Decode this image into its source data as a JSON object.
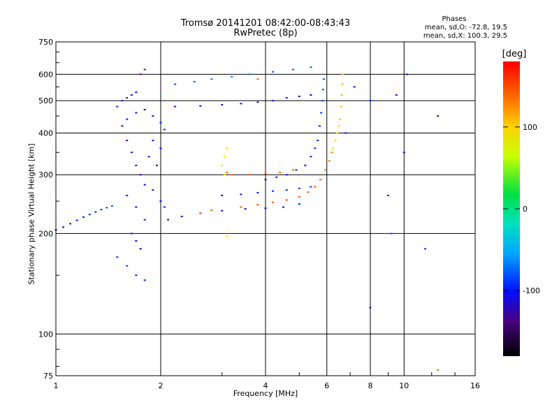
{
  "title": "Tromsø 20141201 08:42:00-08:43:43",
  "subtitle": "RwPretec (8p)",
  "stats": {
    "heading": "Phases",
    "line_o": "mean, sd,O: -72.8, 19.5",
    "line_x": "mean, sd,X: 100.3, 29.5"
  },
  "colorbar": {
    "unit": "[deg]",
    "ticks": [
      {
        "value": 100,
        "label": "100"
      },
      {
        "value": 0,
        "label": "0"
      },
      {
        "value": -100,
        "label": "-100"
      }
    ],
    "range": [
      -180,
      180
    ]
  },
  "chart_data": {
    "type": "scatter",
    "title": "Tromsø 20141201 08:42:00-08:43:43",
    "subtitle": "RwPretec (8p)",
    "xlabel": "Frequency [MHz]",
    "ylabel": "Stationary phase Virtual Height [km]",
    "x_scale": "log",
    "y_scale": "log",
    "xlim": [
      1,
      16
    ],
    "ylim": [
      75,
      750
    ],
    "x_ticks": [
      {
        "value": 1,
        "label": "1"
      },
      {
        "value": 2,
        "label": "2"
      },
      {
        "value": 4,
        "label": "4"
      },
      {
        "value": 6,
        "label": "6"
      },
      {
        "value": 8,
        "label": "8"
      },
      {
        "value": 10,
        "label": "10"
      },
      {
        "value": 16,
        "label": "16"
      }
    ],
    "y_ticks": [
      {
        "value": 75,
        "label": "75"
      },
      {
        "value": 100,
        "label": "100"
      },
      {
        "value": 200,
        "label": "200"
      },
      {
        "value": 300,
        "label": "300"
      },
      {
        "value": 400,
        "label": "400"
      },
      {
        "value": 500,
        "label": "500"
      },
      {
        "value": 600,
        "label": "600"
      },
      {
        "value": 750,
        "label": "750"
      }
    ],
    "grid": true,
    "color_encoding": "phase [deg]",
    "series": [
      {
        "points": [
          [
            1.0,
            205,
            -100
          ],
          [
            1.05,
            209,
            -98
          ],
          [
            1.1,
            214,
            -96
          ],
          [
            1.15,
            219,
            -94
          ],
          [
            1.2,
            224,
            -92
          ],
          [
            1.25,
            228,
            -90
          ],
          [
            1.3,
            232,
            -88
          ],
          [
            1.35,
            236,
            -86
          ],
          [
            1.4,
            239,
            -84
          ],
          [
            1.45,
            242,
            -82
          ]
        ]
      },
      {
        "points": [
          [
            1.5,
            480,
            -115
          ],
          [
            1.55,
            500,
            -112
          ],
          [
            1.6,
            510,
            -110
          ],
          [
            1.65,
            520,
            -108
          ],
          [
            1.7,
            530,
            -105
          ],
          [
            1.75,
            600,
            -120
          ],
          [
            1.8,
            620,
            -118
          ],
          [
            1.6,
            380,
            -110
          ],
          [
            1.65,
            350,
            -105
          ],
          [
            1.7,
            320,
            -112
          ],
          [
            1.75,
            300,
            -115
          ],
          [
            1.6,
            260,
            -108
          ],
          [
            1.7,
            240,
            -110
          ],
          [
            1.8,
            220,
            -115
          ],
          [
            1.65,
            200,
            -112
          ],
          [
            1.7,
            190,
            -110
          ],
          [
            1.75,
            180,
            -105
          ],
          [
            1.55,
            420,
            -100
          ],
          [
            1.6,
            440,
            -95
          ],
          [
            1.7,
            460,
            -100
          ],
          [
            1.8,
            470,
            -102
          ],
          [
            1.9,
            450,
            -98
          ],
          [
            2.0,
            430,
            -95
          ],
          [
            2.05,
            410,
            -92
          ],
          [
            1.9,
            380,
            -100
          ],
          [
            2.0,
            360,
            -102
          ],
          [
            1.85,
            340,
            -108
          ],
          [
            1.95,
            320,
            -105
          ],
          [
            1.8,
            280,
            -100
          ],
          [
            1.9,
            270,
            -98
          ],
          [
            2.0,
            250,
            -95
          ],
          [
            2.05,
            240,
            -92
          ],
          [
            1.5,
            170,
            -88
          ],
          [
            1.6,
            160,
            -90
          ],
          [
            1.7,
            150,
            -92
          ],
          [
            1.8,
            145,
            -95
          ]
        ]
      },
      {
        "points": [
          [
            2.1,
            220,
            -115
          ],
          [
            2.3,
            225,
            -112
          ],
          [
            2.6,
            230,
            -110
          ],
          [
            3.0,
            234,
            -108
          ],
          [
            3.5,
            237,
            -105
          ],
          [
            4.0,
            238,
            -103
          ],
          [
            4.5,
            240,
            -100
          ],
          [
            5.0,
            245,
            -98
          ]
        ]
      },
      {
        "points": [
          [
            2.2,
            560,
            -80
          ],
          [
            2.5,
            570,
            -75
          ],
          [
            2.8,
            580,
            -70
          ],
          [
            3.2,
            590,
            -72
          ],
          [
            3.6,
            600,
            -74
          ],
          [
            4.2,
            610,
            -78
          ],
          [
            4.8,
            620,
            -80
          ],
          [
            5.4,
            630,
            -82
          ]
        ]
      },
      {
        "points": [
          [
            2.2,
            480,
            -110
          ],
          [
            2.6,
            482,
            -112
          ],
          [
            3.0,
            486,
            -110
          ],
          [
            3.4,
            490,
            -108
          ],
          [
            3.8,
            495,
            -112
          ],
          [
            4.2,
            500,
            -110
          ],
          [
            4.6,
            510,
            -108
          ],
          [
            5.0,
            515,
            -106
          ],
          [
            5.4,
            520,
            -104
          ]
        ]
      },
      {
        "points": [
          [
            3.0,
            260,
            -100
          ],
          [
            3.4,
            262,
            -98
          ],
          [
            3.8,
            265,
            -96
          ],
          [
            4.2,
            268,
            -94
          ],
          [
            4.6,
            270,
            -92
          ],
          [
            5.0,
            273,
            -90
          ],
          [
            5.4,
            276,
            -88
          ]
        ]
      },
      {
        "points": [
          [
            4.0,
            290,
            -108
          ],
          [
            4.3,
            295,
            -106
          ],
          [
            4.6,
            300,
            -104
          ],
          [
            4.9,
            310,
            -102
          ],
          [
            5.2,
            320,
            -100
          ],
          [
            5.4,
            340,
            -98
          ],
          [
            5.55,
            360,
            -96
          ],
          [
            5.65,
            380,
            -94
          ],
          [
            5.72,
            420,
            -92
          ],
          [
            5.78,
            460,
            -90
          ],
          [
            5.82,
            500,
            -88
          ],
          [
            5.85,
            540,
            -86
          ],
          [
            5.88,
            580,
            -84
          ]
        ]
      },
      {
        "points": [
          [
            3.4,
            240,
            145
          ],
          [
            3.8,
            244,
            148
          ],
          [
            4.2,
            248,
            150
          ],
          [
            4.6,
            252,
            152
          ],
          [
            5.0,
            258,
            150
          ],
          [
            5.3,
            266,
            148
          ],
          [
            5.55,
            276,
            146
          ],
          [
            5.75,
            290,
            144
          ],
          [
            5.95,
            310,
            140
          ],
          [
            6.1,
            330,
            135
          ],
          [
            6.2,
            350,
            130
          ]
        ]
      },
      {
        "points": [
          [
            3.2,
            300,
            145
          ],
          [
            3.6,
            300,
            150
          ],
          [
            4.0,
            302,
            148
          ],
          [
            4.4,
            305,
            145
          ],
          [
            4.8,
            310,
            140
          ]
        ]
      },
      {
        "points": [
          [
            6.25,
            360,
            95
          ],
          [
            6.35,
            380,
            98
          ],
          [
            6.42,
            400,
            100
          ],
          [
            6.5,
            420,
            102
          ],
          [
            6.55,
            440,
            104
          ],
          [
            6.6,
            480,
            106
          ],
          [
            6.62,
            520,
            108
          ],
          [
            6.65,
            560,
            110
          ],
          [
            6.66,
            600,
            112
          ]
        ]
      },
      {
        "points": [
          [
            3.0,
            320,
            80
          ],
          [
            3.05,
            340,
            82
          ],
          [
            3.1,
            360,
            84
          ],
          [
            3.05,
            300,
            78
          ],
          [
            3.1,
            196,
            60
          ]
        ]
      },
      {
        "points": [
          [
            2.6,
            230,
            148
          ],
          [
            2.8,
            235,
            150
          ],
          [
            3.1,
            305,
            145
          ],
          [
            3.8,
            580,
            150
          ]
        ]
      },
      {
        "points": [
          [
            6.8,
            400,
            -110
          ],
          [
            7.2,
            550,
            -100
          ],
          [
            8.0,
            500,
            -90
          ],
          [
            9.5,
            520,
            -110
          ],
          [
            10.0,
            350,
            -120
          ],
          [
            11.5,
            180,
            -90
          ],
          [
            12.5,
            450,
            -110
          ],
          [
            12.5,
            78,
            140
          ],
          [
            9.0,
            260,
            -90
          ],
          [
            9.2,
            200,
            -80
          ],
          [
            10.2,
            600,
            -100
          ],
          [
            8.0,
            120,
            -110
          ]
        ]
      }
    ]
  }
}
